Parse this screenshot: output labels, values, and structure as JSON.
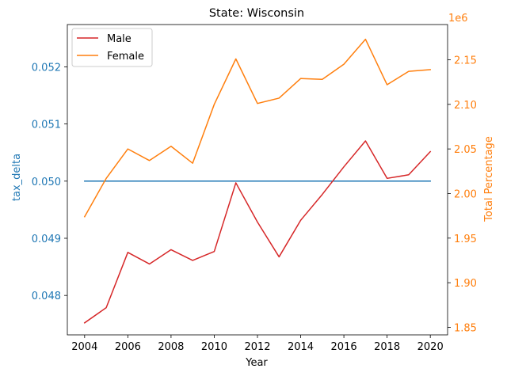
{
  "chart_data": {
    "type": "line",
    "title": "State: Wisconsin",
    "xlabel": "Year",
    "ylabel_left": "tax_delta",
    "ylabel_right": "Total Percentage",
    "right_axis_offset_text": "1e6",
    "x": [
      2004,
      2005,
      2006,
      2007,
      2008,
      2009,
      2010,
      2011,
      2012,
      2013,
      2014,
      2015,
      2016,
      2017,
      2018,
      2019,
      2020
    ],
    "xticks": [
      "2004",
      "2006",
      "2008",
      "2010",
      "2012",
      "2014",
      "2016",
      "2018",
      "2020"
    ],
    "left_axis": {
      "ylim": [
        0.04731,
        0.05274
      ],
      "ticks": [
        0.048,
        0.049,
        0.05,
        0.051,
        0.052
      ],
      "tick_labels": [
        "0.048",
        "0.049",
        "0.050",
        "0.051",
        "0.052"
      ],
      "color": "#1f77b4"
    },
    "right_axis": {
      "ylim": [
        1.8415,
        2.1895
      ],
      "ticks": [
        1.85,
        1.9,
        1.95,
        2.0,
        2.05,
        2.1,
        2.15
      ],
      "tick_labels": [
        "1.85",
        "1.90",
        "1.95",
        "2.00",
        "2.05",
        "2.10",
        "2.15"
      ],
      "color": "#ff7f0e"
    },
    "series": [
      {
        "axis": "left",
        "color": "#1f77b4",
        "values": [
          0.05,
          0.05,
          0.05,
          0.05,
          0.05,
          0.05,
          0.05,
          0.05,
          0.05,
          0.05,
          0.05,
          0.05,
          0.05,
          0.05,
          0.05,
          0.05,
          0.05
        ]
      },
      {
        "name": "Male",
        "axis": "right",
        "color": "#d62728",
        "values": [
          1.855,
          1.872,
          1.934,
          1.921,
          1.937,
          1.925,
          1.935,
          2.012,
          1.968,
          1.929,
          1.97,
          1.999,
          2.03,
          2.059,
          2.017,
          2.021,
          2.047
        ]
      },
      {
        "name": "Female",
        "axis": "right",
        "color": "#ff7f0e",
        "values": [
          1.974,
          2.017,
          2.05,
          2.037,
          2.053,
          2.034,
          2.1,
          2.151,
          2.101,
          2.107,
          2.129,
          2.128,
          2.145,
          2.173,
          2.122,
          2.137,
          2.139
        ]
      }
    ],
    "legend": {
      "placement": "top-left",
      "entries": [
        "Male",
        "Female"
      ]
    },
    "grid": false
  }
}
